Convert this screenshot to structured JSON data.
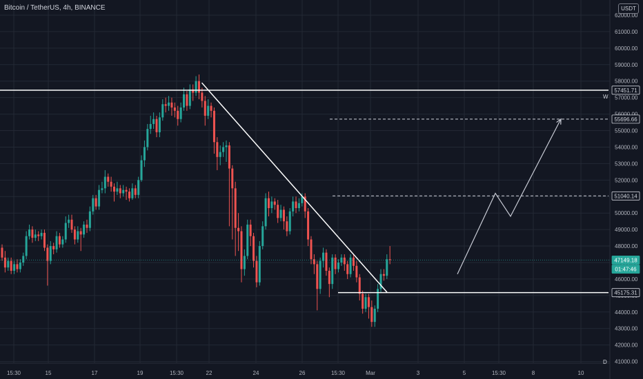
{
  "header": {
    "title": "Bitcoin / TetherUS, 4h, BINANCE",
    "currency_badge": "USDT"
  },
  "chart_data": {
    "type": "candlestick",
    "ylim": [
      40900,
      62500
    ],
    "y_ticks": [
      "41000.00",
      "42000.00",
      "43000.00",
      "44000.00",
      "45000.00",
      "46000.00",
      "47000.00",
      "48000.00",
      "49000.00",
      "50000.00",
      "51000.00",
      "52000.00",
      "53000.00",
      "54000.00",
      "55000.00",
      "56000.00",
      "57000.00",
      "58000.00",
      "59000.00",
      "60000.00",
      "61000.00",
      "62000.00"
    ],
    "x_ticks": [
      "15:30",
      "15",
      "17",
      "19",
      "15:30",
      "22",
      "24",
      "26",
      "15:30",
      "Mar",
      "3",
      "5",
      "15:30",
      "8",
      "10"
    ],
    "candles": [
      [
        47900,
        47300,
        48100,
        47100
      ],
      [
        47300,
        46700,
        47700,
        46400
      ],
      [
        46700,
        47100,
        47300,
        46500
      ],
      [
        47100,
        46500,
        47300,
        46300
      ],
      [
        46500,
        46900,
        47100,
        46300
      ],
      [
        46900,
        46600,
        47200,
        46400
      ],
      [
        46600,
        47000,
        47200,
        46400
      ],
      [
        47000,
        47400,
        47600,
        46800
      ],
      [
        47400,
        48600,
        48900,
        47200
      ],
      [
        48600,
        49000,
        49300,
        48400
      ],
      [
        49000,
        48500,
        49200,
        48200
      ],
      [
        48500,
        48700,
        49000,
        48300
      ],
      [
        48700,
        48600,
        48900,
        48300
      ],
      [
        48600,
        48800,
        49000,
        48400
      ],
      [
        48800,
        47900,
        49000,
        47700
      ],
      [
        47900,
        47100,
        48100,
        45600
      ],
      [
        47100,
        48000,
        48300,
        46900
      ],
      [
        48000,
        47800,
        48200,
        47500
      ],
      [
        47800,
        48600,
        48900,
        47600
      ],
      [
        48600,
        48100,
        48800,
        47900
      ],
      [
        48100,
        48400,
        48600,
        47900
      ],
      [
        48400,
        49400,
        49800,
        48200
      ],
      [
        49400,
        49600,
        49900,
        49100
      ],
      [
        49600,
        49000,
        49900,
        48800
      ],
      [
        49000,
        48400,
        49200,
        48100
      ],
      [
        48400,
        48900,
        49200,
        48200
      ],
      [
        48900,
        48700,
        49100,
        47700
      ],
      [
        48700,
        49300,
        49500,
        48500
      ],
      [
        49300,
        49100,
        49600,
        48800
      ],
      [
        49100,
        50100,
        50400,
        48900
      ],
      [
        50100,
        50900,
        51100,
        49900
      ],
      [
        50900,
        50400,
        51100,
        50200
      ],
      [
        50400,
        51400,
        51700,
        50200
      ],
      [
        51400,
        51500,
        51900,
        51200
      ],
      [
        51500,
        52200,
        52600,
        51200
      ],
      [
        52200,
        51900,
        52400,
        51600
      ],
      [
        51900,
        51600,
        52200,
        51300
      ],
      [
        51600,
        51300,
        51800,
        50700
      ],
      [
        51300,
        51500,
        51900,
        51100
      ],
      [
        51500,
        51200,
        51700,
        50900
      ],
      [
        51200,
        51400,
        51700,
        51000
      ],
      [
        51400,
        51300,
        51600,
        50800
      ],
      [
        51300,
        50900,
        51500,
        50700
      ],
      [
        50900,
        51500,
        51800,
        50800
      ],
      [
        51500,
        51100,
        51700,
        50900
      ],
      [
        51100,
        52000,
        52200,
        50900
      ],
      [
        52000,
        53200,
        53500,
        51900
      ],
      [
        53200,
        54000,
        54400,
        52800
      ],
      [
        54000,
        55100,
        55400,
        53800
      ],
      [
        55100,
        55400,
        55900,
        54800
      ],
      [
        55400,
        55700,
        56100,
        55100
      ],
      [
        55700,
        54900,
        55900,
        54600
      ],
      [
        54900,
        55800,
        56100,
        54600
      ],
      [
        55800,
        56600,
        56900,
        55600
      ],
      [
        56600,
        56500,
        57000,
        56100
      ],
      [
        56500,
        56700,
        57100,
        56200
      ],
      [
        56700,
        56400,
        57000,
        55900
      ],
      [
        56400,
        56200,
        56700,
        55800
      ],
      [
        56200,
        55700,
        56500,
        55300
      ],
      [
        55700,
        56400,
        56700,
        55500
      ],
      [
        56400,
        57200,
        57600,
        56200
      ],
      [
        57200,
        56500,
        57400,
        56200
      ],
      [
        56500,
        57500,
        57800,
        56300
      ],
      [
        57500,
        57300,
        57800,
        56800
      ],
      [
        57300,
        58000,
        58300,
        57100
      ],
      [
        58000,
        57300,
        58400,
        56900
      ],
      [
        57300,
        56800,
        57600,
        56400
      ],
      [
        56800,
        55900,
        57100,
        55300
      ],
      [
        55900,
        56500,
        56900,
        55700
      ],
      [
        56500,
        56200,
        56700,
        55800
      ],
      [
        56200,
        54300,
        56400,
        53600
      ],
      [
        54300,
        53400,
        54600,
        52600
      ],
      [
        53400,
        53700,
        54100,
        52900
      ],
      [
        53700,
        54000,
        54300,
        53400
      ],
      [
        54000,
        54100,
        54400,
        53100
      ],
      [
        54100,
        52700,
        54300,
        49200
      ],
      [
        52700,
        51500,
        52900,
        48400
      ],
      [
        51500,
        49100,
        51900,
        47400
      ],
      [
        49100,
        48900,
        50000,
        47700
      ],
      [
        48900,
        46600,
        49200,
        45800
      ],
      [
        46600,
        47400,
        47800,
        46200
      ],
      [
        47400,
        49300,
        49600,
        47200
      ],
      [
        49300,
        48600,
        49600,
        48000
      ],
      [
        48600,
        47100,
        48800,
        46700
      ],
      [
        47100,
        45800,
        47400,
        45500
      ],
      [
        45800,
        48000,
        48300,
        45600
      ],
      [
        48000,
        49200,
        49500,
        47800
      ],
      [
        49200,
        50900,
        51200,
        49000
      ],
      [
        50900,
        50300,
        51300,
        49800
      ],
      [
        50300,
        50700,
        51000,
        50000
      ],
      [
        50700,
        50500,
        50900,
        50200
      ],
      [
        50500,
        49700,
        50800,
        49400
      ],
      [
        49700,
        50200,
        50500,
        49500
      ],
      [
        50200,
        49500,
        50400,
        49000
      ],
      [
        49500,
        48900,
        49800,
        48600
      ],
      [
        48900,
        50100,
        50300,
        48700
      ],
      [
        50100,
        50700,
        51000,
        49800
      ],
      [
        50700,
        50300,
        51000,
        50000
      ],
      [
        50300,
        50600,
        50900,
        50100
      ],
      [
        50600,
        51000,
        51200,
        50400
      ],
      [
        51000,
        50100,
        51200,
        49700
      ],
      [
        50100,
        48400,
        50300,
        48000
      ],
      [
        48400,
        47200,
        48600,
        46900
      ],
      [
        47200,
        46900,
        47500,
        46300
      ],
      [
        46900,
        45400,
        47100,
        44100
      ],
      [
        45400,
        47100,
        47300,
        45100
      ],
      [
        47100,
        47600,
        47900,
        46700
      ],
      [
        47600,
        46500,
        47800,
        46200
      ],
      [
        46500,
        45700,
        46700,
        44900
      ],
      [
        45700,
        47300,
        47500,
        45400
      ],
      [
        47300,
        46600,
        47500,
        46300
      ],
      [
        46600,
        47000,
        47200,
        46400
      ],
      [
        47000,
        47300,
        47500,
        46800
      ],
      [
        47300,
        46900,
        47500,
        46500
      ],
      [
        46900,
        46300,
        47100,
        46000
      ],
      [
        46300,
        47300,
        47500,
        46100
      ],
      [
        47300,
        46800,
        47500,
        46500
      ],
      [
        46800,
        46100,
        47100,
        45800
      ],
      [
        46100,
        45100,
        46300,
        44700
      ],
      [
        45100,
        44200,
        45300,
        43900
      ],
      [
        44200,
        44900,
        45100,
        44000
      ],
      [
        44900,
        44300,
        45100,
        43600
      ],
      [
        44300,
        43400,
        44700,
        43100
      ],
      [
        43400,
        44200,
        44400,
        43100
      ],
      [
        44200,
        45400,
        45700,
        44000
      ],
      [
        45400,
        46300,
        46600,
        45200
      ],
      [
        46300,
        46200,
        46600,
        45900
      ],
      [
        46200,
        47200,
        47500,
        46000
      ],
      [
        47200,
        47149,
        48000,
        46900
      ]
    ],
    "lines": [
      {
        "x1": 292.5,
        "y1": 57900,
        "x2": 561,
        "y2": 45200
      },
      {
        "x1": 0,
        "y1": 57451.71,
        "x2": 882,
        "y2": 57451.71
      },
      {
        "x1": 490,
        "y1": 45175.31,
        "x2": 882,
        "y2": 45175.31
      }
    ],
    "dashed_lines": [
      {
        "x1": 478,
        "x2": 882,
        "y": 55696.66
      },
      {
        "x1": 482,
        "x2": 882,
        "y": 51040.14
      }
    ],
    "projection_path": [
      [
        663,
        46300
      ],
      [
        718,
        51200
      ],
      [
        740,
        49800
      ],
      [
        813,
        55700
      ]
    ],
    "price_labels": [
      {
        "text": "57451.71",
        "value": 57451.71,
        "style": "white"
      },
      {
        "text": "55696.66",
        "value": 55696.66,
        "style": "white"
      },
      {
        "text": "51040.14",
        "value": 51040.14,
        "style": "white"
      },
      {
        "text": "45175.31",
        "value": 45175.31,
        "style": "white"
      },
      {
        "text": "47149.18",
        "value": 47149.18,
        "style": "green"
      },
      {
        "text": "01:47:46",
        "value": 46600,
        "style": "green"
      }
    ],
    "corner_labels": {
      "top": "W",
      "bottom": "D"
    },
    "colors": {
      "up": "#26a69a",
      "down": "#ef5350",
      "background": "#131722",
      "grid": "#232834",
      "text": "#b2b5be",
      "line": "#ffffff",
      "current_price": "#26a69a"
    }
  }
}
